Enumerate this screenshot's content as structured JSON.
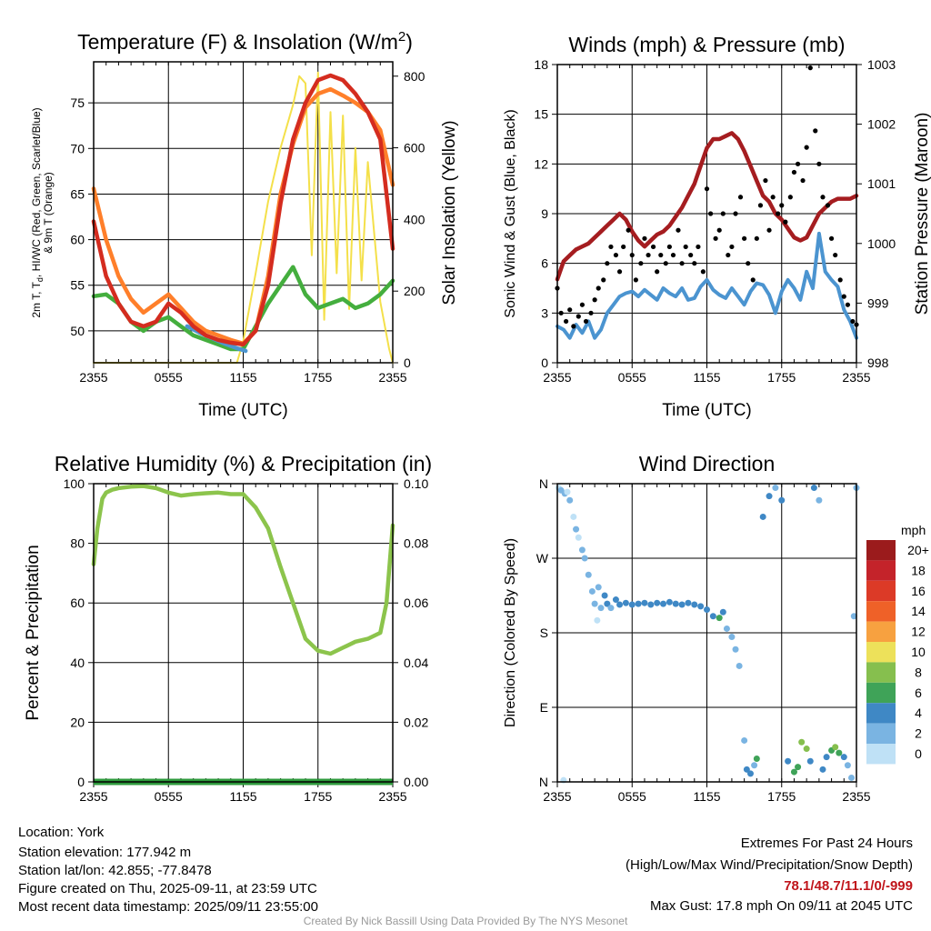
{
  "chart_data": [
    {
      "type": "line",
      "title": "Temperature (F) & Insolation (W/m²)",
      "title_main": "Temperature (F) & Insolation (W/m",
      "title_sup": "2",
      "title_end": ")",
      "xlabel": "Time (UTC)",
      "ylabel_lines": [
        "2m T, T",
        "d",
        ", HI/WC (Red, Green, Scarlet/Blue)",
        "& 9m T (Orange)"
      ],
      "ylabel_right": "Solar Insolation (Yellow)",
      "x_ticks": [
        "2355",
        "0555",
        "1155",
        "1755",
        "2355"
      ],
      "ylim": [
        46.5,
        79.5
      ],
      "yticks": [
        50,
        55,
        60,
        65,
        70,
        75
      ],
      "ylim_right": [
        0,
        840
      ],
      "yticks_right": [
        0,
        200,
        400,
        600,
        800
      ],
      "series": [
        {
          "color": "#ff7f2a",
          "axis": "left",
          "x": [
            0,
            1,
            2,
            3,
            4,
            5,
            6,
            7,
            8,
            9,
            10,
            11,
            12,
            13,
            14,
            15,
            16,
            17,
            18,
            19,
            20,
            21,
            22,
            23,
            24
          ],
          "values": [
            65.6,
            60,
            56,
            53.5,
            52,
            53,
            54,
            52.5,
            51,
            50,
            49.5,
            49,
            48.6,
            50,
            56,
            65,
            70.5,
            74.5,
            76,
            76.5,
            75.8,
            75,
            74,
            72,
            66
          ]
        },
        {
          "color": "#d42c1f",
          "axis": "left",
          "x": [
            0,
            1,
            2,
            3,
            4,
            5,
            6,
            7,
            8,
            9,
            10,
            11,
            12,
            13,
            14,
            15,
            16,
            17,
            18,
            19,
            20,
            21,
            22,
            23,
            24
          ],
          "values": [
            62,
            56,
            53,
            51,
            50.5,
            51,
            53,
            52,
            50.5,
            49.5,
            49,
            48.7,
            48.5,
            50,
            55,
            64,
            71,
            75,
            77.5,
            78,
            77.5,
            76,
            74,
            71,
            59
          ]
        },
        {
          "color": "#44ae3e",
          "axis": "left",
          "x": [
            0,
            1,
            2,
            3,
            4,
            5,
            6,
            7,
            8,
            9,
            10,
            11,
            12,
            13,
            14,
            15,
            16,
            17,
            18,
            19,
            20,
            21,
            22,
            23,
            24
          ],
          "values": [
            53.8,
            54,
            53,
            51,
            50,
            51,
            51.5,
            50.5,
            49.5,
            49,
            48.5,
            48,
            48,
            50.5,
            53,
            55,
            57,
            54,
            52.5,
            53,
            53.5,
            52.5,
            53,
            54,
            55.5
          ]
        },
        {
          "color": "#4c95cf",
          "axis": "left",
          "x": [
            7.5,
            8.5,
            9.5,
            10.5,
            11.5,
            12.2
          ],
          "values": [
            50.5,
            49.8,
            49.2,
            48.6,
            48.1,
            47.8
          ]
        },
        {
          "color": "#f4e04a",
          "axis": "right",
          "x": [
            0,
            11.5,
            12,
            13,
            14,
            15,
            16,
            16.5,
            17,
            17.5,
            18,
            18.5,
            19,
            19.5,
            20,
            20.5,
            21,
            21.5,
            22,
            23,
            23.7,
            24
          ],
          "values": [
            0,
            0,
            60,
            250,
            450,
            600,
            720,
            800,
            780,
            300,
            810,
            120,
            700,
            250,
            690,
            150,
            600,
            230,
            560,
            170,
            40,
            0
          ]
        }
      ]
    },
    {
      "type": "scatter",
      "title": "Winds (mph) & Pressure (mb)",
      "xlabel": "Time (UTC)",
      "ylabel": "Sonic Wind & Gust (Blue, Black)",
      "ylabel_right": "Station Pressure (Maroon)",
      "x_ticks": [
        "2355",
        "0555",
        "1155",
        "1755",
        "2355"
      ],
      "ylim": [
        0,
        18
      ],
      "yticks": [
        0,
        3,
        6,
        9,
        12,
        15,
        18
      ],
      "ylim_right": [
        998,
        1003
      ],
      "yticks_right": [
        998,
        999,
        1000,
        1001,
        1002,
        1003
      ],
      "wind": {
        "color": "#4b94d0",
        "x": [
          0,
          0.5,
          1,
          1.5,
          2,
          2.5,
          3,
          3.5,
          4,
          4.5,
          5,
          5.5,
          6,
          6.5,
          7,
          7.5,
          8,
          8.5,
          9,
          9.5,
          10,
          10.5,
          11,
          11.5,
          12,
          12.5,
          13,
          13.5,
          14,
          14.5,
          15,
          15.5,
          16,
          16.5,
          17,
          17.5,
          18,
          18.5,
          19,
          19.5,
          20,
          20.5,
          21,
          21.5,
          22,
          22.5,
          23,
          23.5,
          24
        ],
        "values": [
          2.2,
          2,
          1.5,
          2.3,
          1.8,
          2.5,
          1.5,
          2,
          3,
          3.5,
          4,
          4.2,
          4.3,
          4,
          4.4,
          4.1,
          3.8,
          4.5,
          4.2,
          4,
          4.5,
          3.8,
          3.9,
          4.6,
          5,
          4.4,
          4.1,
          3.9,
          4.5,
          4,
          3.5,
          4.3,
          4.8,
          4.7,
          4.1,
          3,
          4.3,
          5,
          4.5,
          3.8,
          5.5,
          4.5,
          7.8,
          5.5,
          5,
          4.6,
          3.2,
          2.5,
          1.5
        ]
      },
      "gust": {
        "color": "#000000",
        "x": [
          0,
          0.3,
          0.7,
          1,
          1.3,
          1.7,
          2,
          2.3,
          2.7,
          3,
          3.3,
          3.7,
          4,
          4.3,
          4.7,
          5,
          5.3,
          5.7,
          6,
          6.3,
          6.7,
          7,
          7.3,
          7.7,
          8,
          8.3,
          8.7,
          9,
          9.3,
          9.7,
          10,
          10.3,
          10.7,
          11,
          11.3,
          11.7,
          12,
          12.3,
          12.7,
          13,
          13.3,
          13.7,
          14,
          14.3,
          14.7,
          15,
          15.3,
          15.7,
          16,
          16.3,
          16.7,
          17,
          17.3,
          17.7,
          18,
          18.3,
          18.7,
          19,
          19.3,
          19.7,
          20,
          20.3,
          20.7,
          21,
          21.3,
          21.7,
          22,
          22.3,
          22.7,
          23,
          23.3,
          23.7,
          24
        ],
        "values": [
          4.5,
          3,
          2.5,
          3.2,
          2.2,
          2.8,
          3.5,
          2.5,
          3,
          3.8,
          4.5,
          5,
          6,
          7,
          6.5,
          5.5,
          7,
          8,
          6.5,
          5,
          6,
          7.5,
          6.5,
          7,
          5.5,
          6.5,
          6,
          7,
          6.5,
          8,
          6,
          7,
          6.5,
          6,
          7,
          5.5,
          10.5,
          9,
          7.5,
          8,
          9,
          6.5,
          7,
          9,
          10,
          7.5,
          6,
          5,
          7.5,
          9.5,
          11,
          8,
          10,
          9,
          9.5,
          8.5,
          10,
          11.5,
          12,
          11,
          13,
          17.8,
          14,
          12,
          10,
          9.5,
          7.5,
          6.5,
          5,
          4,
          3.5,
          2.5,
          2.3
        ]
      },
      "pressure": {
        "color": "#a51d20",
        "x": [
          0,
          0.5,
          1,
          1.5,
          2,
          2.5,
          3,
          3.5,
          4,
          4.5,
          5,
          5.5,
          6,
          6.5,
          7,
          7.5,
          8,
          8.5,
          9,
          9.5,
          10,
          10.5,
          11,
          11.5,
          12,
          12.5,
          13,
          13.5,
          14,
          14.5,
          15,
          15.5,
          16,
          16.5,
          17,
          17.5,
          18,
          18.5,
          19,
          19.5,
          20,
          20.5,
          21,
          21.5,
          22,
          22.5,
          23,
          23.5,
          24
        ],
        "values": [
          999.4,
          999.7,
          999.8,
          999.9,
          999.95,
          1000,
          1000.1,
          1000.2,
          1000.3,
          1000.4,
          1000.5,
          1000.4,
          1000.2,
          1000.05,
          999.95,
          1000.05,
          1000.15,
          1000.2,
          1000.3,
          1000.45,
          1000.6,
          1000.8,
          1001.0,
          1001.3,
          1001.6,
          1001.75,
          1001.75,
          1001.8,
          1001.85,
          1001.75,
          1001.55,
          1001.3,
          1001.05,
          1000.8,
          1000.7,
          1000.5,
          1000.4,
          1000.25,
          1000.1,
          1000.05,
          1000.1,
          1000.3,
          1000.5,
          1000.6,
          1000.7,
          1000.75,
          1000.75,
          1000.75,
          1000.8
        ]
      }
    },
    {
      "type": "line",
      "title": "Relative Humidity (%) & Precipitation (in)",
      "xlabel": "",
      "ylabel": "Percent & Precipitation",
      "x_ticks": [
        "2355",
        "0555",
        "1155",
        "1755",
        "2355"
      ],
      "ylim": [
        0,
        100
      ],
      "yticks": [
        0,
        20,
        40,
        60,
        80,
        100
      ],
      "ylim_right": [
        0,
        0.1
      ],
      "yticks_right": [
        "0.00",
        "0.02",
        "0.04",
        "0.06",
        "0.08",
        "0.10"
      ],
      "rh": {
        "color": "#8cc44c",
        "x": [
          0,
          0.3,
          0.7,
          1,
          1.5,
          2,
          3,
          4,
          5,
          6,
          7,
          8,
          9,
          10,
          11,
          12,
          13,
          14,
          15,
          16,
          17,
          18,
          19,
          20,
          21,
          22,
          23,
          23.5,
          24
        ],
        "values": [
          73,
          85,
          95,
          97,
          98,
          98.5,
          99,
          99.2,
          98.5,
          97,
          96,
          96.5,
          96.8,
          97,
          96.5,
          96.5,
          92,
          85,
          72,
          60,
          48,
          44,
          43,
          45,
          47,
          48,
          50,
          60,
          86
        ]
      },
      "precip": {
        "color": "#2e9a3c",
        "values": [
          0,
          0,
          0,
          0,
          0
        ]
      }
    },
    {
      "type": "scatter",
      "title": "Wind Direction",
      "xlabel": "",
      "ylabel": "Direction (Colored By Speed)",
      "x_ticks": [
        "2355",
        "0555",
        "1155",
        "1755",
        "2355"
      ],
      "ylim": [
        0,
        360
      ],
      "yticks_labels": [
        "N",
        "E",
        "S",
        "W",
        "N"
      ],
      "colorbar_unit": "mph",
      "colorbar_labels": [
        "20+",
        "18",
        "16",
        "14",
        "12",
        "10",
        "8",
        "6",
        "4",
        "2",
        "0"
      ],
      "colorbar_colors": [
        "#9b1b1c",
        "#c4232a",
        "#dc3a27",
        "#ef6128",
        "#f7a140",
        "#ede15a",
        "#86bf4e",
        "#3fa358",
        "#3f88c5",
        "#7ab4e2",
        "#bfe1f6"
      ],
      "points": [
        {
          "t": 0.1,
          "d": 355,
          "s": 1
        },
        {
          "t": 0.3,
          "d": 352,
          "s": 2
        },
        {
          "t": 0.6,
          "d": 348,
          "s": 2
        },
        {
          "t": 0.8,
          "d": 350,
          "s": 1
        },
        {
          "t": 1.0,
          "d": 340,
          "s": 2
        },
        {
          "t": 1.3,
          "d": 320,
          "s": 1
        },
        {
          "t": 1.5,
          "d": 305,
          "s": 2
        },
        {
          "t": 1.7,
          "d": 295,
          "s": 1
        },
        {
          "t": 2.0,
          "d": 280,
          "s": 2
        },
        {
          "t": 2.2,
          "d": 270,
          "s": 2
        },
        {
          "t": 2.5,
          "d": 250,
          "s": 3
        },
        {
          "t": 2.8,
          "d": 230,
          "s": 3
        },
        {
          "t": 3.0,
          "d": 215,
          "s": 2
        },
        {
          "t": 3.2,
          "d": 195,
          "s": 1
        },
        {
          "t": 3.3,
          "d": 235,
          "s": 3
        },
        {
          "t": 3.5,
          "d": 210,
          "s": 3
        },
        {
          "t": 3.8,
          "d": 225,
          "s": 4
        },
        {
          "t": 4.0,
          "d": 215,
          "s": 4
        },
        {
          "t": 4.3,
          "d": 210,
          "s": 3
        },
        {
          "t": 4.7,
          "d": 220,
          "s": 4
        },
        {
          "t": 5.0,
          "d": 214,
          "s": 4
        },
        {
          "t": 5.5,
          "d": 216,
          "s": 4
        },
        {
          "t": 6.0,
          "d": 214,
          "s": 4
        },
        {
          "t": 6.5,
          "d": 215,
          "s": 4
        },
        {
          "t": 7.0,
          "d": 216,
          "s": 4
        },
        {
          "t": 7.5,
          "d": 214,
          "s": 4
        },
        {
          "t": 8.0,
          "d": 216,
          "s": 4
        },
        {
          "t": 8.5,
          "d": 215,
          "s": 4
        },
        {
          "t": 9.0,
          "d": 217,
          "s": 4
        },
        {
          "t": 9.5,
          "d": 215,
          "s": 4
        },
        {
          "t": 10.0,
          "d": 214,
          "s": 4
        },
        {
          "t": 10.5,
          "d": 216,
          "s": 4
        },
        {
          "t": 11.0,
          "d": 214,
          "s": 4
        },
        {
          "t": 11.5,
          "d": 212,
          "s": 4
        },
        {
          "t": 12.0,
          "d": 208,
          "s": 4
        },
        {
          "t": 12.5,
          "d": 200,
          "s": 5
        },
        {
          "t": 13.0,
          "d": 198,
          "s": 6
        },
        {
          "t": 13.3,
          "d": 205,
          "s": 4
        },
        {
          "t": 13.6,
          "d": 185,
          "s": 3
        },
        {
          "t": 14.0,
          "d": 175,
          "s": 3
        },
        {
          "t": 14.3,
          "d": 160,
          "s": 3
        },
        {
          "t": 14.6,
          "d": 140,
          "s": 2
        },
        {
          "t": 15.0,
          "d": 50,
          "s": 2
        },
        {
          "t": 15.2,
          "d": 15,
          "s": 4
        },
        {
          "t": 15.5,
          "d": 10,
          "s": 5
        },
        {
          "t": 15.8,
          "d": 20,
          "s": 3
        },
        {
          "t": 16.0,
          "d": 28,
          "s": 6
        },
        {
          "t": 16.5,
          "d": 320,
          "s": 5
        },
        {
          "t": 17.0,
          "d": 345,
          "s": 4
        },
        {
          "t": 17.5,
          "d": 355,
          "s": 3
        },
        {
          "t": 18.0,
          "d": 340,
          "s": 4
        },
        {
          "t": 18.5,
          "d": 25,
          "s": 5
        },
        {
          "t": 19.0,
          "d": 12,
          "s": 6
        },
        {
          "t": 19.3,
          "d": 18,
          "s": 7
        },
        {
          "t": 19.6,
          "d": 48,
          "s": 9
        },
        {
          "t": 20.0,
          "d": 40,
          "s": 8
        },
        {
          "t": 20.3,
          "d": 25,
          "s": 4
        },
        {
          "t": 20.6,
          "d": 355,
          "s": 4
        },
        {
          "t": 21.0,
          "d": 340,
          "s": 3
        },
        {
          "t": 21.3,
          "d": 15,
          "s": 4
        },
        {
          "t": 21.6,
          "d": 30,
          "s": 5
        },
        {
          "t": 22.0,
          "d": 38,
          "s": 7
        },
        {
          "t": 22.3,
          "d": 42,
          "s": 8
        },
        {
          "t": 22.6,
          "d": 35,
          "s": 6
        },
        {
          "t": 23.0,
          "d": 30,
          "s": 4
        },
        {
          "t": 23.3,
          "d": 20,
          "s": 3
        },
        {
          "t": 23.6,
          "d": 5,
          "s": 2
        },
        {
          "t": 24.0,
          "d": 355,
          "s": 2
        },
        {
          "t": 23.8,
          "d": 200,
          "s": 2
        },
        {
          "t": 0.5,
          "d": 2,
          "s": 1
        }
      ]
    }
  ],
  "info": {
    "location": "Location: York",
    "elevation": "Station elevation: 177.942 m",
    "latlon": "Station lat/lon: 42.855; -77.8478",
    "created": "Figure created on Thu, 2025-09-11, at 23:59 UTC",
    "recent": "Most recent data timestamp: 2025/09/11 23:55:00"
  },
  "extremes": {
    "title": "Extremes For Past 24 Hours",
    "subtitle": "(High/Low/Max Wind/Precipitation/Snow Depth)",
    "values": "78.1/48.7/11.1/0/-999",
    "max_gust": "Max Gust: 17.8 mph On 09/11 at 2045 UTC"
  },
  "footer": "Created By Nick Bassill Using Data Provided By The NYS Mesonet"
}
